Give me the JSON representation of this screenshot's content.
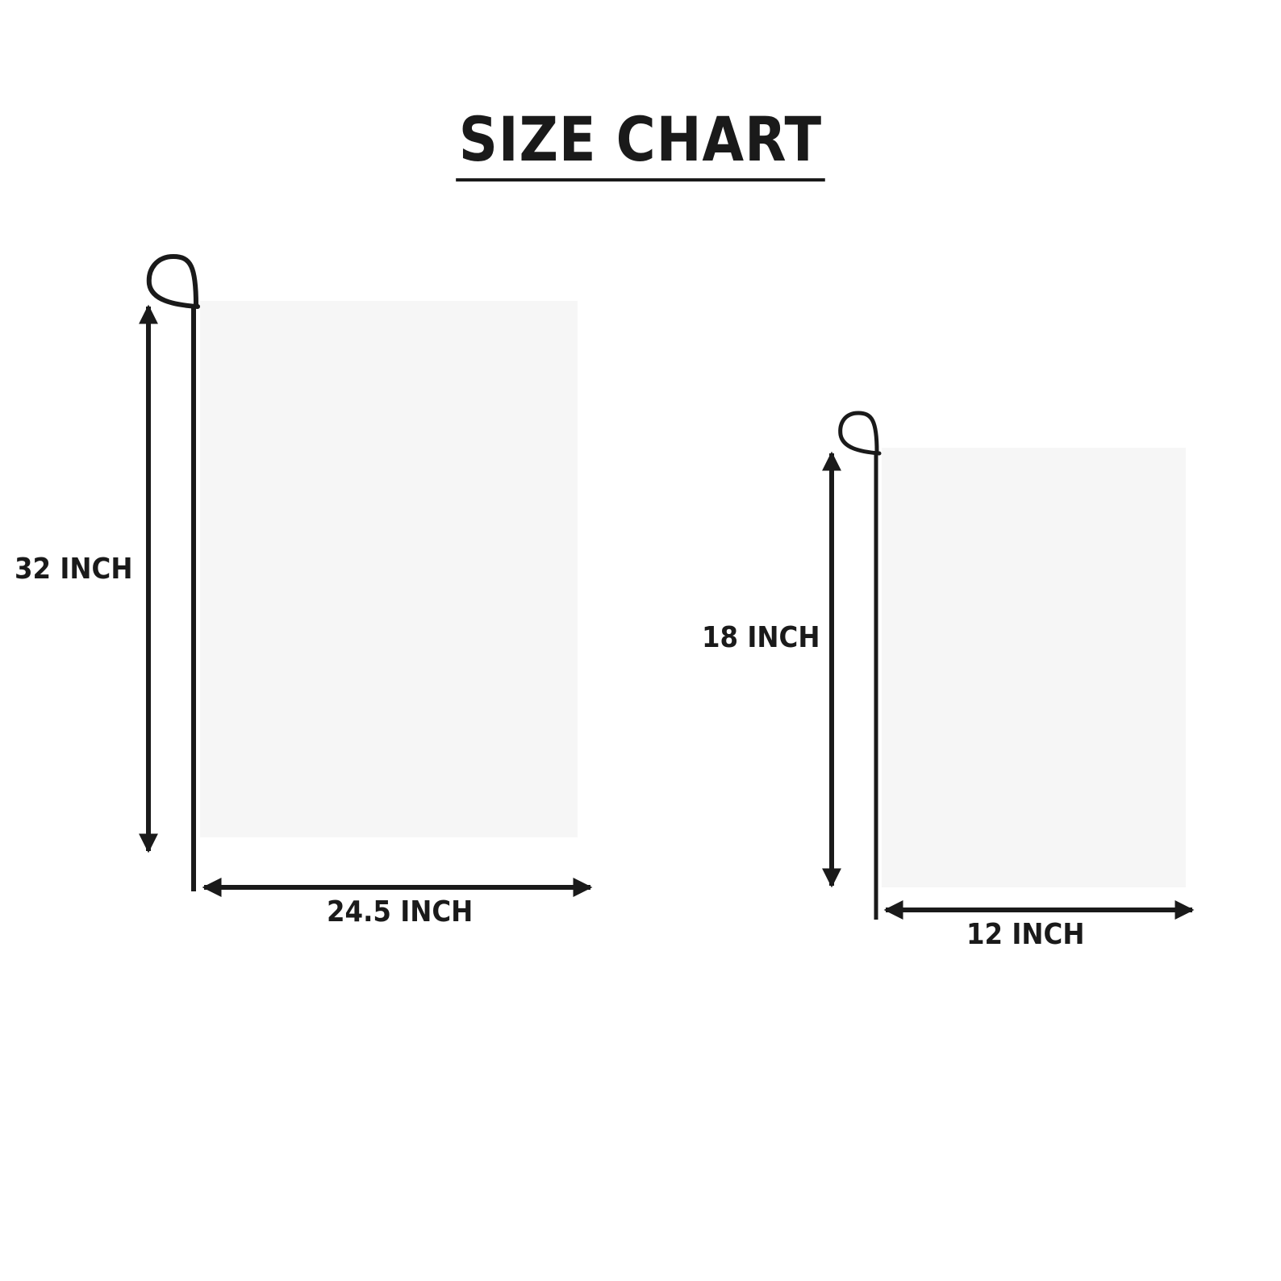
{
  "title": "SIZE CHART",
  "colors": {
    "pole": "#1a1a1a",
    "arrow": "#1a1a1a",
    "flag": "#f6f6f6",
    "text": "#1a1a1a"
  },
  "flags": [
    {
      "name": "large-flag",
      "height_label": "32 INCH",
      "width_label": "24.5 INCH",
      "height_in": 32,
      "width_in": 24.5
    },
    {
      "name": "small-flag",
      "height_label": "18 INCH",
      "width_label": "12 INCH",
      "height_in": 18,
      "width_in": 12
    }
  ]
}
